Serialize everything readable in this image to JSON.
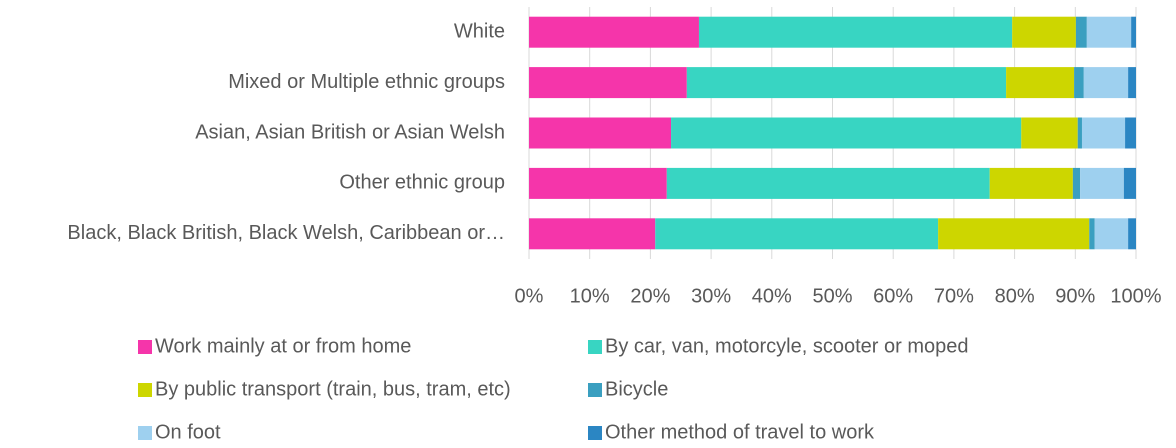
{
  "chart_data": {
    "type": "stacked-barh",
    "categories": [
      "White",
      "Mixed or Multiple ethnic groups",
      "Asian, Asian British or Asian Welsh",
      "Other ethnic group",
      "Black, Black British, Black Welsh, Caribbean or…"
    ],
    "series": [
      {
        "name": "Work mainly at or from home",
        "color": "#f535aa",
        "values": [
          28,
          26,
          23.4,
          22.7,
          20.8
        ]
      },
      {
        "name": "By car, van, motorcyle, scooter or moped",
        "color": "#38d5c2",
        "values": [
          51.6,
          52.6,
          57.7,
          53.2,
          46.6
        ]
      },
      {
        "name": "By public transport (train, bus, tram, etc)",
        "color": "#cdd600",
        "values": [
          10.5,
          11.2,
          9.3,
          13.7,
          24.9
        ]
      },
      {
        "name": "Bicycle",
        "color": "#3a9fc0",
        "values": [
          1.8,
          1.6,
          0.7,
          1.2,
          0.9
        ]
      },
      {
        "name": "On foot",
        "color": "#9ed0ef",
        "values": [
          7.3,
          7.3,
          7.1,
          7.2,
          5.5
        ]
      },
      {
        "name": "Other method of travel to work",
        "color": "#2b86c3",
        "values": [
          0.8,
          1.3,
          1.8,
          2.0,
          1.3
        ]
      }
    ],
    "xlim": [
      0,
      100
    ],
    "xticks": [
      {
        "value": 0,
        "label": "0%"
      },
      {
        "value": 10,
        "label": "10%"
      },
      {
        "value": 20,
        "label": "20%"
      },
      {
        "value": 30,
        "label": "30%"
      },
      {
        "value": 40,
        "label": "40%"
      },
      {
        "value": 50,
        "label": "50%"
      },
      {
        "value": 60,
        "label": "60%"
      },
      {
        "value": 70,
        "label": "70%"
      },
      {
        "value": 80,
        "label": "80%"
      },
      {
        "value": 90,
        "label": "90%"
      },
      {
        "value": 100,
        "label": "100%"
      }
    ],
    "grid": true
  }
}
